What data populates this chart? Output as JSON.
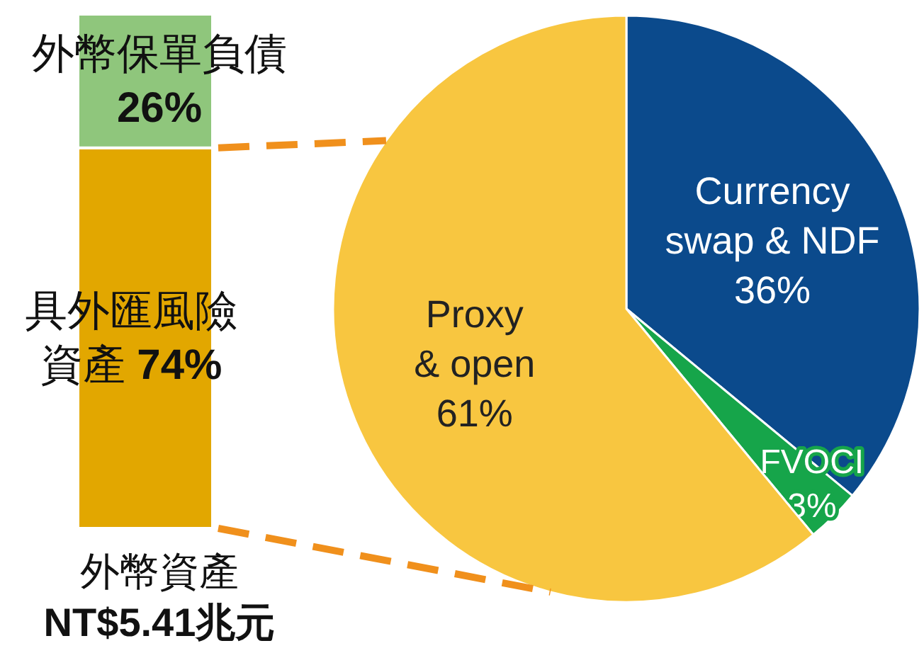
{
  "chart_data": [
    {
      "type": "bar",
      "stacked": true,
      "categories": [
        null
      ],
      "xlabel": "外幣資產\nNT$5.41兆元",
      "series": [
        {
          "name": "具外匯風險資產",
          "color": "#e2a700",
          "values": [
            74
          ],
          "value_labels": [
            "74%"
          ]
        },
        {
          "name": "外幣保單負債",
          "color": "#8fc67c",
          "values": [
            26
          ],
          "value_labels": [
            "26%"
          ]
        }
      ]
    },
    {
      "type": "pie",
      "categories": [
        "Currency\nswap & NDF",
        "FVOCI",
        "Proxy\n& open"
      ],
      "values": [
        36,
        3,
        61
      ],
      "colors": [
        "#0b4a8c",
        "#16a54a",
        "#f8c640"
      ],
      "value_labels": [
        "36%",
        "3%",
        "61%"
      ]
    }
  ]
}
